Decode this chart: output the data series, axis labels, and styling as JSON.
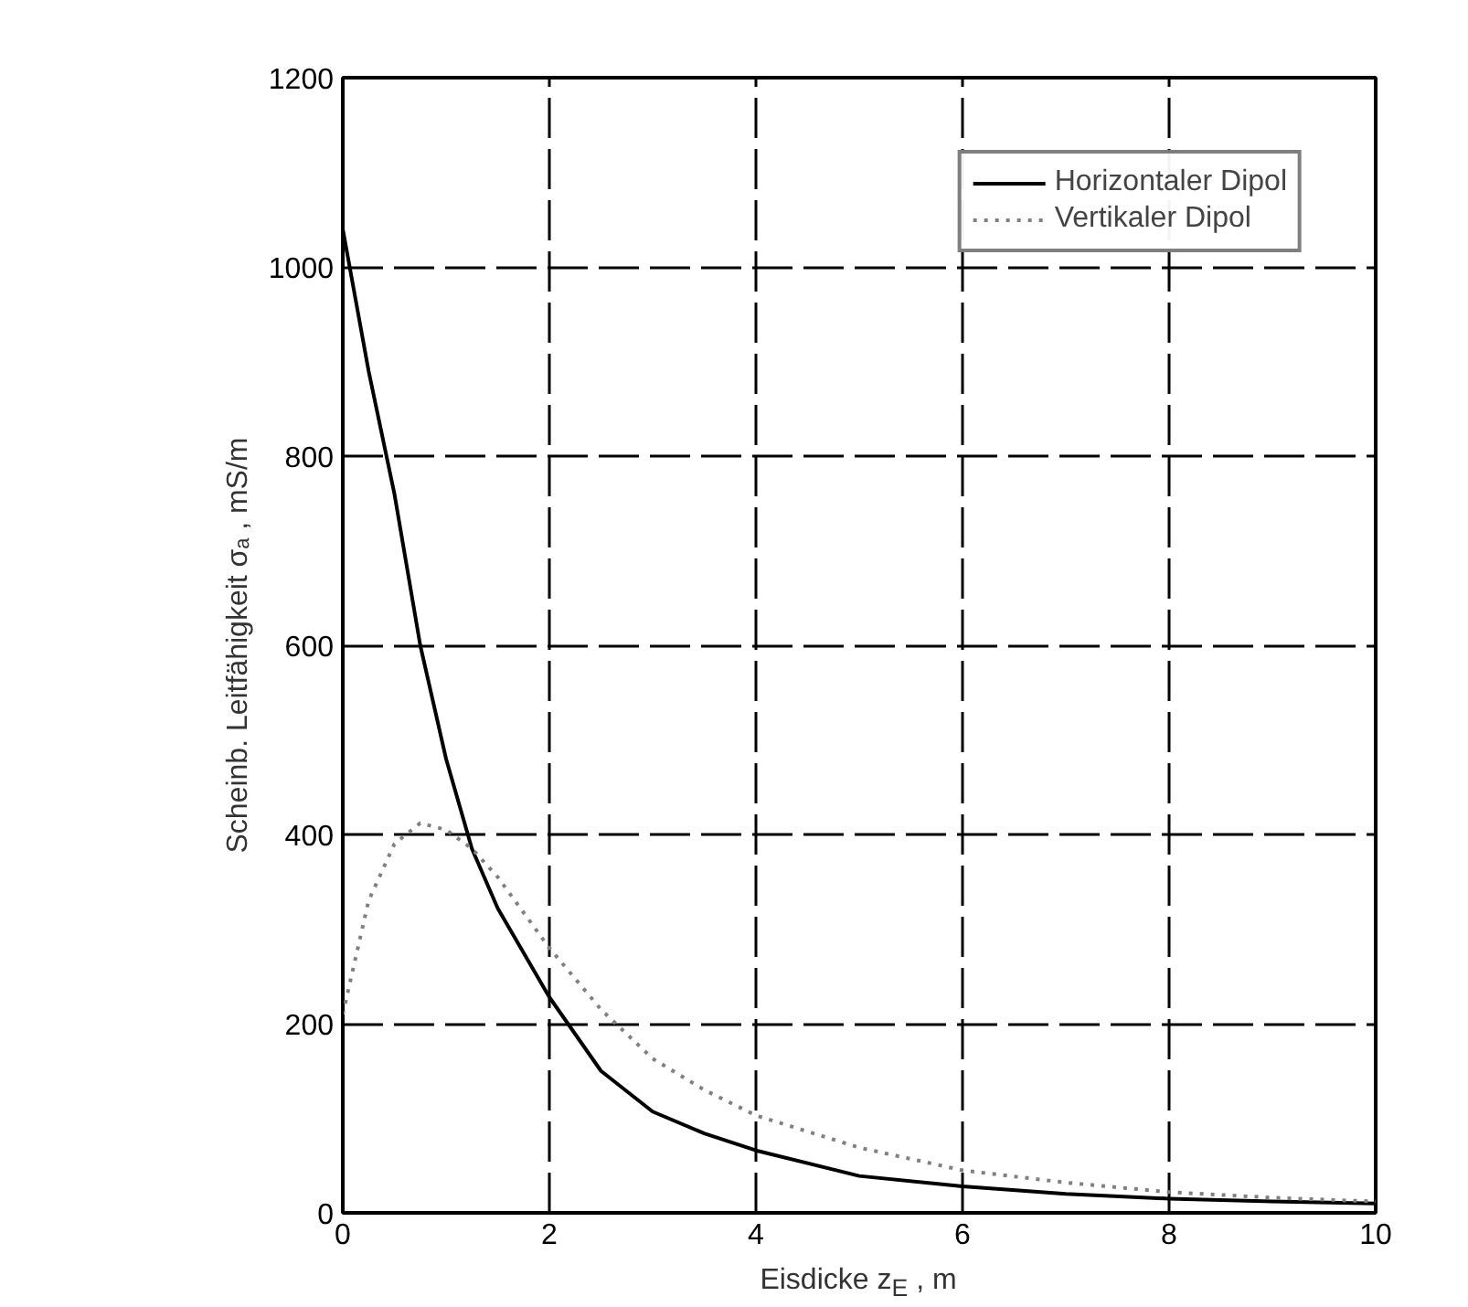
{
  "chart_data": {
    "type": "line",
    "xlabel": "Eisdicke z$_{E}$ , m",
    "ylabel": "Scheinb. Leitfähigkeit σₐ , mS/m",
    "x": [
      0,
      0.25,
      0.5,
      0.75,
      1,
      1.25,
      1.5,
      2,
      2.5,
      3,
      3.5,
      4,
      5,
      6,
      7,
      8,
      9,
      10
    ],
    "series": [
      {
        "name": "Horizontaler Dipol",
        "color": "#000000",
        "line_style": "solid",
        "values": [
          1040,
          890,
          760,
          600,
          480,
          385,
          322,
          228,
          150,
          107,
          84,
          66,
          39,
          28,
          20,
          15,
          12,
          10
        ]
      },
      {
        "name": "Vertikaler Dipol",
        "color": "#808080",
        "line_style": "dotted",
        "values": [
          210,
          330,
          390,
          412,
          405,
          385,
          355,
          280,
          215,
          163,
          130,
          103,
          69,
          45,
          32,
          22,
          16,
          12
        ]
      }
    ],
    "xlim": [
      0,
      10
    ],
    "ylim": [
      0,
      1200
    ],
    "xticks": [
      0,
      2,
      4,
      6,
      8,
      10
    ],
    "yticks": [
      0,
      200,
      400,
      600,
      800,
      1000,
      1200
    ],
    "grid": true,
    "legend": "top right"
  }
}
